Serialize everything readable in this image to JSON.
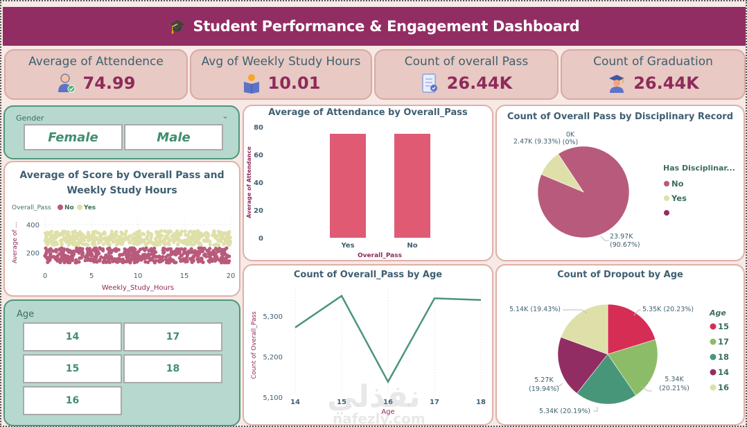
{
  "header": {
    "title": "Student Performance & Engagement Dashboard",
    "icon": "graduation-cap-icon"
  },
  "kpis": [
    {
      "label": "Average of Attendence",
      "value": "74.99",
      "icon": "user-check-icon"
    },
    {
      "label": "Avg of Weekly Study Hours",
      "value": "10.01",
      "icon": "reading-person-icon"
    },
    {
      "label": "Count of overall Pass",
      "value": "26.44K",
      "icon": "checklist-icon"
    },
    {
      "label": "Count of Graduation",
      "value": "26.44K",
      "icon": "graduate-icon"
    }
  ],
  "gender_slicer": {
    "title": "Gender",
    "options": [
      "Female",
      "Male"
    ]
  },
  "age_slicer": {
    "title": "Age",
    "options": [
      "14",
      "17",
      "15",
      "18",
      "16"
    ]
  },
  "colors": {
    "brand": "#922d63",
    "no": "#b85a7c",
    "yes": "#dfe0a9",
    "bar": "#e05a74",
    "line": "#4a9578",
    "age15": "#d62d55",
    "age17": "#8cbc67",
    "age18": "#489679",
    "age14": "#922d63",
    "age16": "#dfe0a9"
  },
  "chart_data": [
    {
      "type": "scatter",
      "title": "Average of Score by Overall Pass and Weekly Study Hours",
      "xlabel": "Weekly_Study_Hours",
      "ylabel": "Average of ...",
      "legend_title": "Overall_Pass",
      "legend": [
        "No",
        "Yes"
      ],
      "xlim": [
        0,
        20
      ],
      "xticks": [
        "0",
        "5",
        "10",
        "15",
        "20"
      ],
      "yticks": [
        "200",
        "400"
      ],
      "ylim": [
        110,
        440
      ],
      "series": [
        {
          "name": "No",
          "y_band": [
            130,
            235
          ]
        },
        {
          "name": "Yes",
          "y_band": [
            255,
            355
          ]
        }
      ]
    },
    {
      "type": "bar",
      "title": "Average of Attendance by Overall_Pass",
      "categories": [
        "Yes",
        "No"
      ],
      "values": [
        75,
        75
      ],
      "xlabel": "Overall_Pass",
      "ylabel": "Average of Attendance",
      "ylim": [
        0,
        80
      ],
      "yticks": [
        "0",
        "20",
        "40",
        "60",
        "80"
      ]
    },
    {
      "type": "pie",
      "title": "Count of Overall Pass by Disciplinary Record",
      "legend_title": "Has Disciplinar...",
      "slices": [
        {
          "name": "No",
          "value": 23.97,
          "label": "23.97K (90.67%)",
          "pct": 90.67
        },
        {
          "name": "Yes",
          "value": 2.47,
          "label": "2.47K (9.33%)",
          "pct": 9.33
        },
        {
          "name": "",
          "value": 0,
          "label": "0K (0%)",
          "pct": 0
        }
      ]
    },
    {
      "type": "line",
      "title": "Count of Overall_Pass by Age",
      "x": [
        "14",
        "15",
        "16",
        "17",
        "18"
      ],
      "values": [
        5272,
        5350,
        5138,
        5344,
        5340
      ],
      "xlabel": "Age",
      "ylabel": "Count of Overall_Pass",
      "ylim": [
        5100,
        5360
      ],
      "yticks": [
        "5,100",
        "5,200",
        "5,300"
      ]
    },
    {
      "type": "pie",
      "title": "Count of Dropout by Age",
      "legend_title": "Age",
      "slices": [
        {
          "name": "15",
          "value": 5.35,
          "label": "5.35K (20.23%)",
          "pct": 20.23
        },
        {
          "name": "17",
          "value": 5.34,
          "label": "5.34K (20.21%)",
          "pct": 20.21
        },
        {
          "name": "18",
          "value": 5.34,
          "label": "5.34K (20.19%)",
          "pct": 20.19
        },
        {
          "name": "14",
          "value": 5.27,
          "label": "5.27K (19.94%)",
          "pct": 19.94
        },
        {
          "name": "16",
          "value": 5.14,
          "label": "5.14K (19.43%)",
          "pct": 19.43
        }
      ]
    }
  ],
  "watermark": {
    "arabic": "نفذلي",
    "latin": "nafezly.com"
  }
}
